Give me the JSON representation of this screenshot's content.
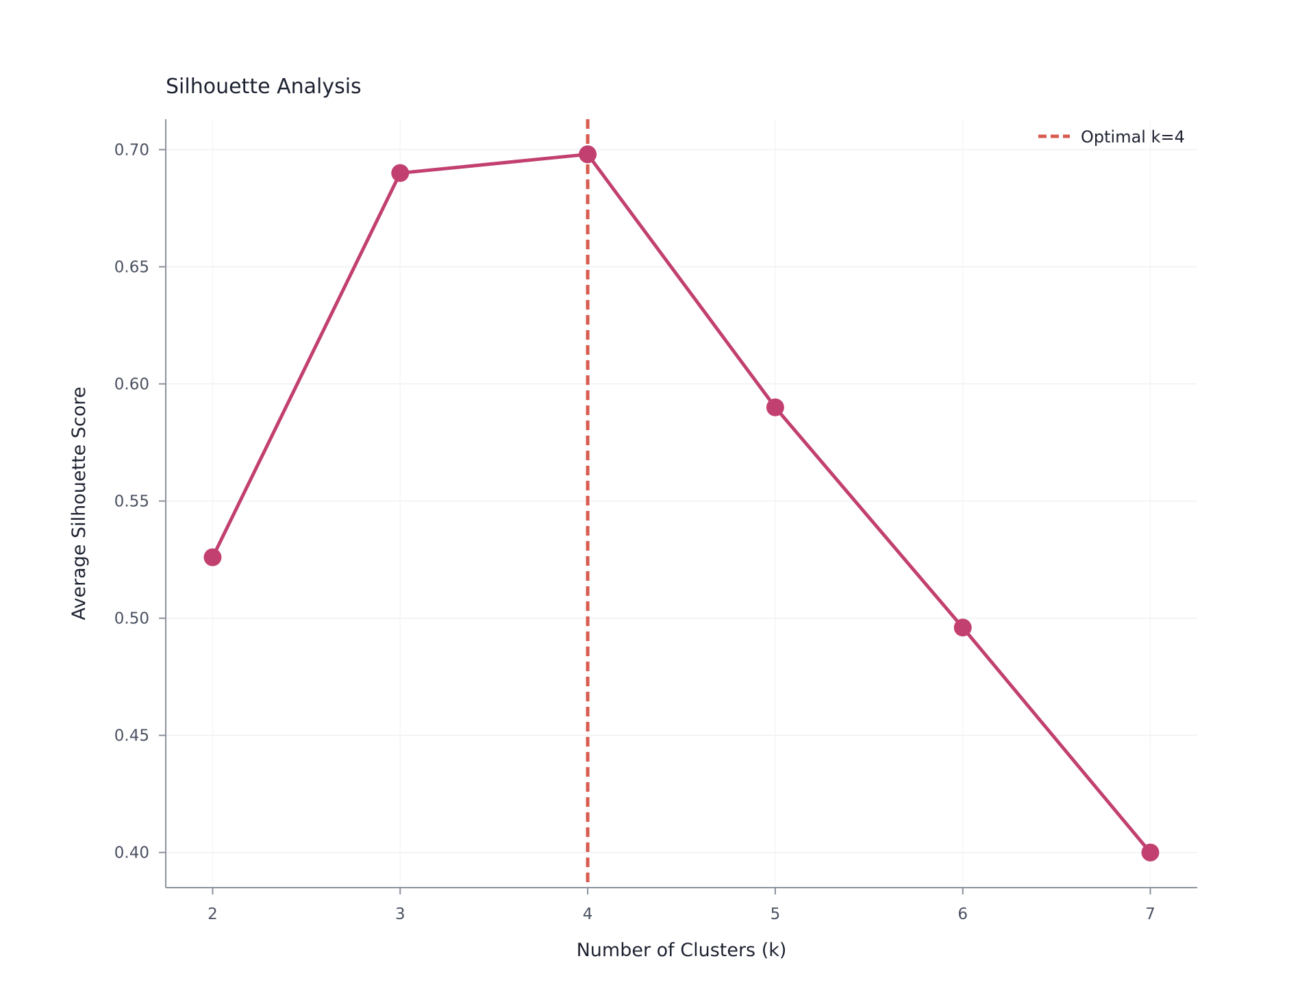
{
  "chart_data": {
    "type": "line",
    "title": "Silhouette Analysis",
    "xlabel": "Number of Clusters (k)",
    "ylabel": "Average Silhouette Score",
    "x": [
      2,
      3,
      4,
      5,
      6,
      7
    ],
    "xticks": [
      "2",
      "3",
      "4",
      "5",
      "6",
      "7"
    ],
    "xlim": [
      1.75,
      7.25
    ],
    "yticks": [
      "0.40",
      "0.45",
      "0.50",
      "0.55",
      "0.60",
      "0.65",
      "0.70"
    ],
    "ylim": [
      0.385,
      0.713
    ],
    "series": [
      {
        "values": [
          0.526,
          0.69,
          0.698,
          0.59,
          0.496,
          0.4
        ],
        "color": "#c2406f"
      }
    ],
    "reference_line": {
      "orientation": "vertical",
      "x": 4,
      "label": "Optimal k=4",
      "color": "#d95b50",
      "style": "dashed"
    },
    "legend_position": "top-right",
    "grid": true
  }
}
